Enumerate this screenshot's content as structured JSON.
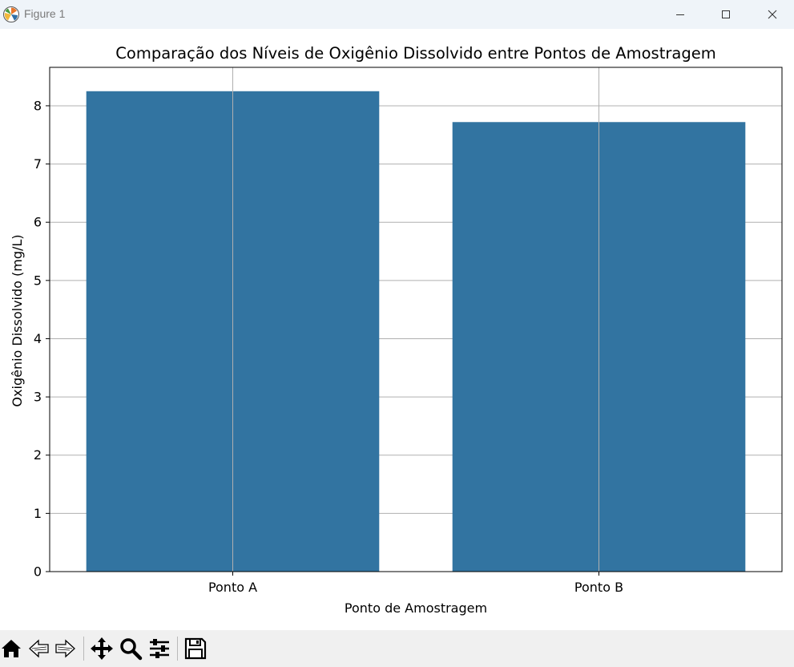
{
  "window": {
    "title": "Figure 1"
  },
  "toolbar": {
    "tools": [
      "home-icon",
      "back-arrow-icon",
      "forward-arrow-icon",
      "pan-icon",
      "zoom-icon",
      "configure-subplots-icon",
      "save-icon"
    ]
  },
  "colors": {
    "bar": "#3274a1",
    "grid": "#b0b0b0",
    "axis": "#000000",
    "titlebar": "#eff4f9",
    "toolbar": "#f0f0f0"
  },
  "chart_data": {
    "type": "bar",
    "title": "Comparação dos Níveis de Oxigênio Dissolvido entre Pontos de Amostragem",
    "xlabel": "Ponto de Amostragem",
    "ylabel": "Oxigênio Dissolvido (mg/L)",
    "categories": [
      "Ponto A",
      "Ponto B"
    ],
    "values": [
      8.25,
      7.72
    ],
    "ylim": [
      0,
      8.66
    ],
    "yticks": [
      "0",
      "1",
      "2",
      "3",
      "4",
      "5",
      "6",
      "7",
      "8"
    ],
    "grid": true
  }
}
